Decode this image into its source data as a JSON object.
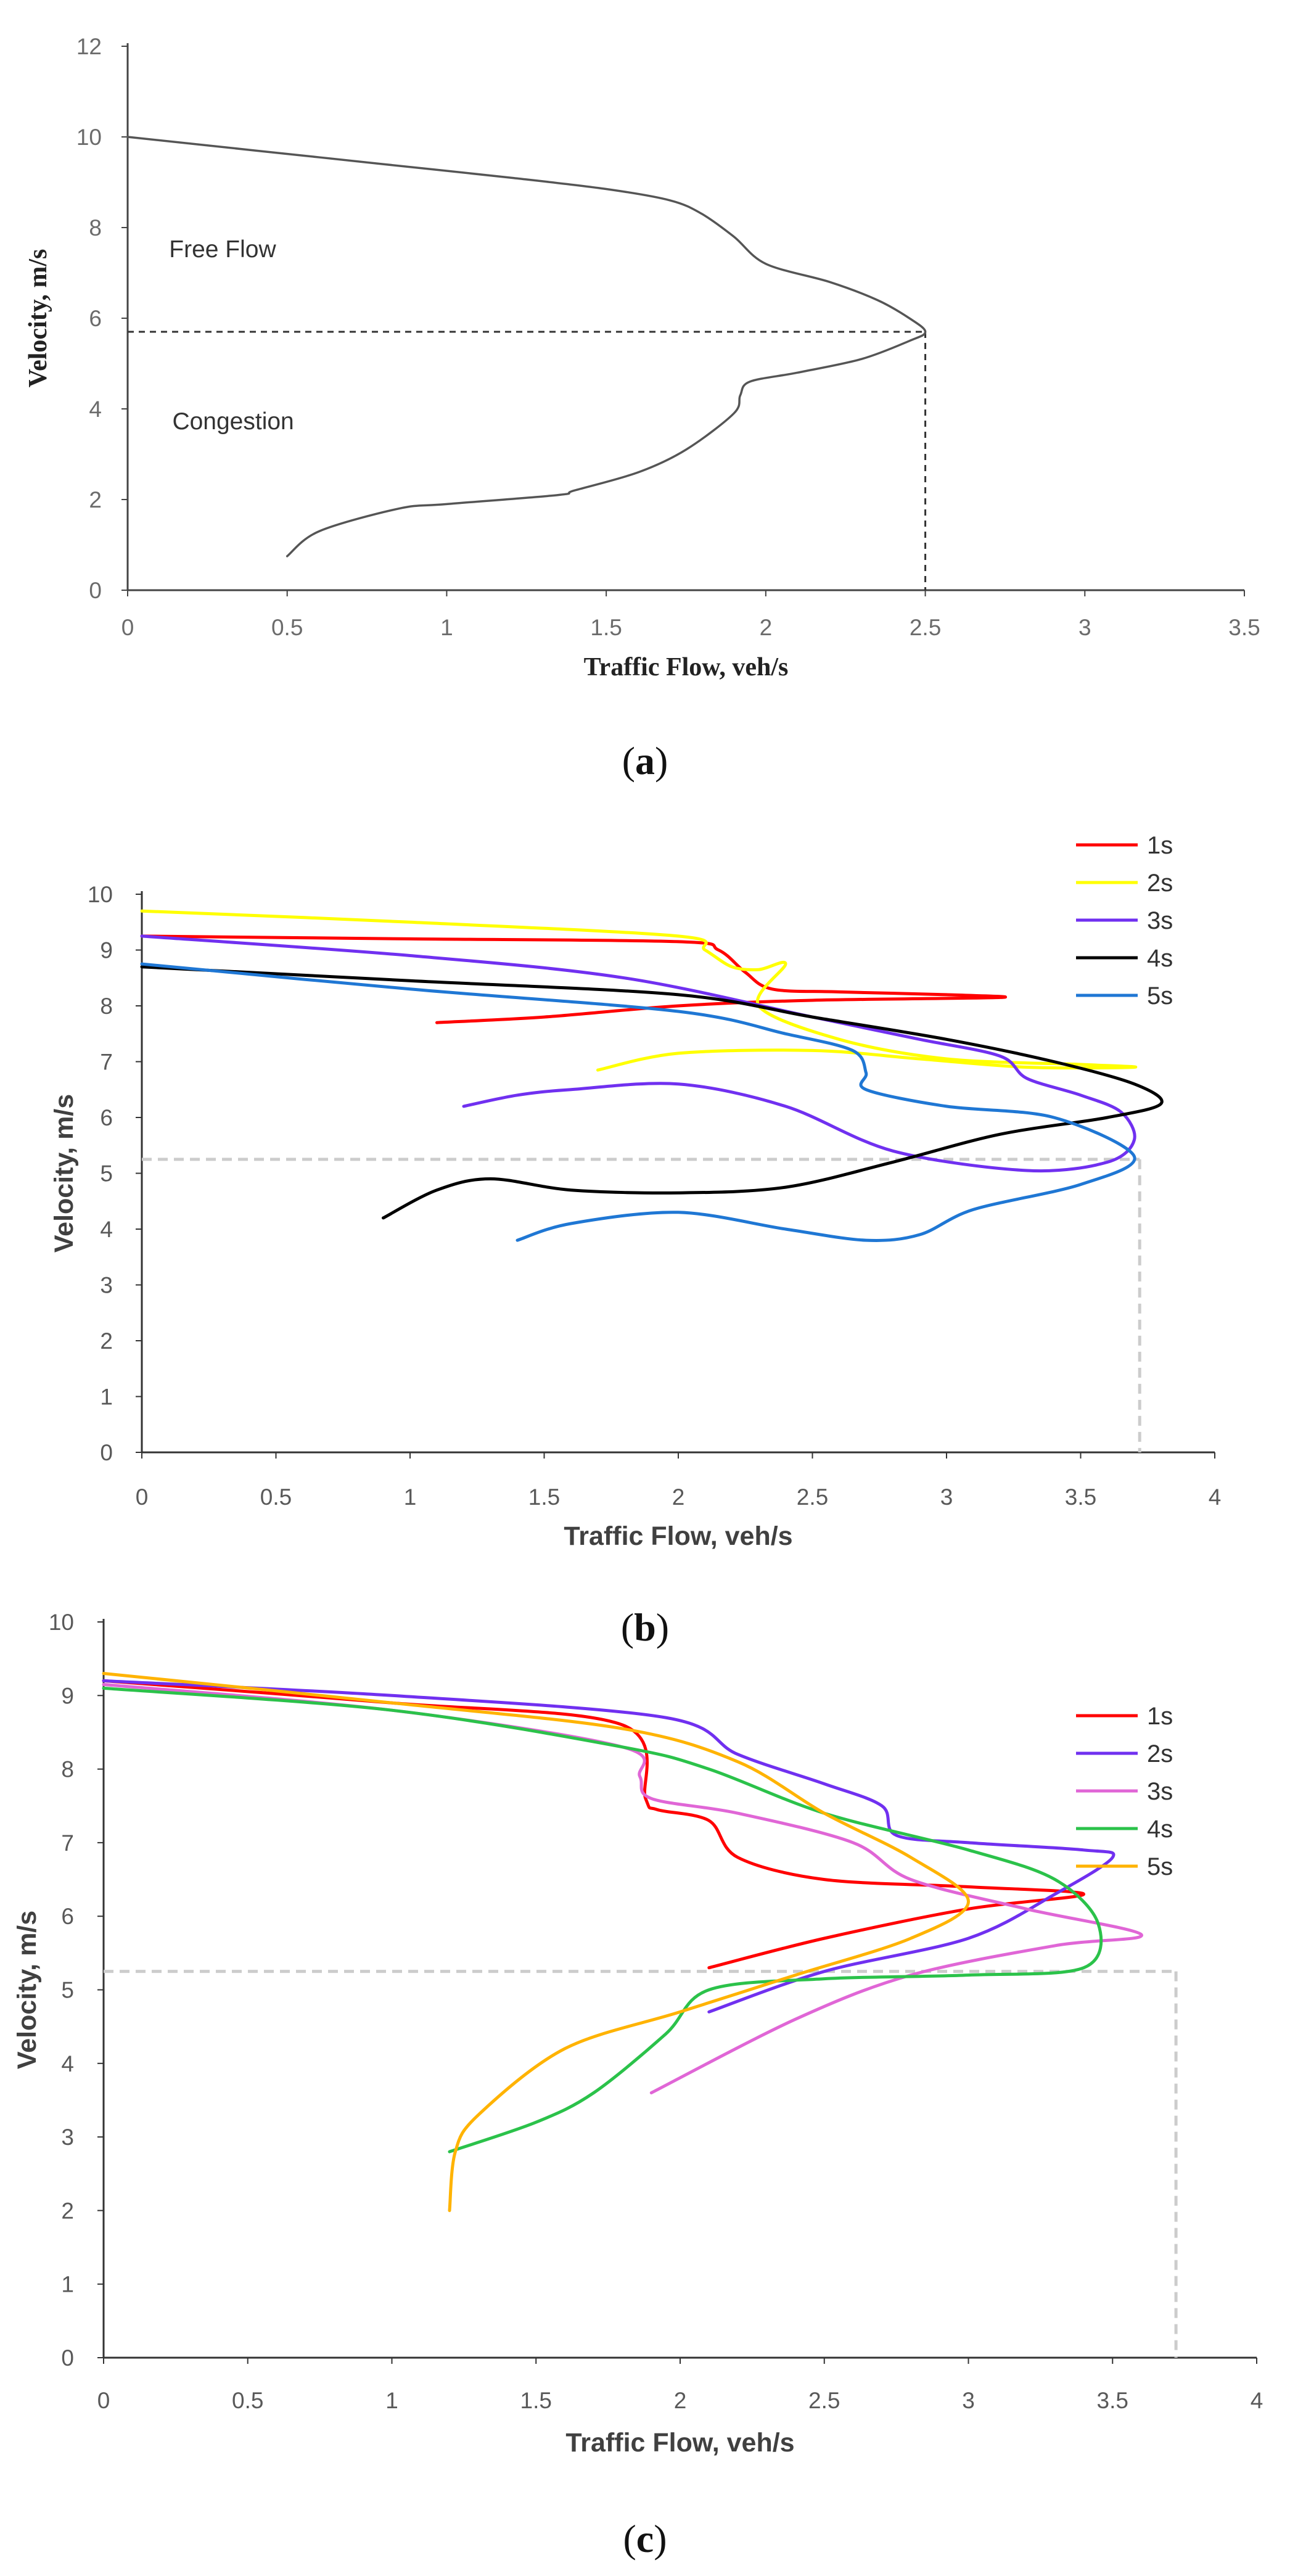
{
  "chart_data": [
    {
      "type": "line",
      "panel": "a",
      "caption": {
        "open": "(",
        "letter": "a",
        "close": ")"
      },
      "xlabel": "Traffic Flow, veh/s",
      "ylabel": "Velocity, m/s",
      "xlim": [
        0,
        3.5
      ],
      "ylim": [
        0,
        12
      ],
      "xticks": [
        "0",
        "0.5",
        "1",
        "1.5",
        "2",
        "2.5",
        "3",
        "3.5"
      ],
      "xtick_values": [
        0,
        0.5,
        1,
        1.5,
        2,
        2.5,
        3,
        3.5
      ],
      "yticks": [
        "0",
        "2",
        "4",
        "6",
        "8",
        "10",
        "12"
      ],
      "ytick_values": [
        0,
        2,
        4,
        6,
        8,
        10,
        12
      ],
      "annotations": [
        {
          "text": "Free Flow",
          "x": 0.13,
          "y": 7.35
        },
        {
          "text": "Congestion",
          "x": 0.14,
          "y": 3.55
        }
      ],
      "reference": {
        "x": 2.5,
        "y": 5.7
      },
      "series": [
        {
          "name": "curve",
          "color": "#555555",
          "x": [
            0,
            0.4,
            0.8,
            1.2,
            1.5,
            1.7,
            1.8,
            1.9,
            2.0,
            2.2,
            2.35,
            2.45,
            2.5,
            2.45,
            2.3,
            2.1,
            1.95,
            1.92,
            1.9,
            1.75,
            1.6,
            1.4,
            1.35,
            1.0,
            0.85,
            0.6,
            0.5
          ],
          "y": [
            10,
            9.7,
            9.4,
            9.1,
            8.85,
            8.6,
            8.3,
            7.8,
            7.2,
            6.8,
            6.4,
            6.0,
            5.7,
            5.5,
            5.1,
            4.8,
            4.6,
            4.3,
            3.9,
            3.1,
            2.6,
            2.2,
            2.1,
            1.9,
            1.8,
            1.3,
            0.75
          ]
        }
      ]
    },
    {
      "type": "line",
      "panel": "b",
      "caption": {
        "open": "(",
        "letter": "b",
        "close": ")"
      },
      "xlabel": "Traffic Flow, veh/s",
      "ylabel": "Velocity, m/s",
      "xlim": [
        0,
        4
      ],
      "ylim": [
        0,
        10
      ],
      "xticks": [
        "0",
        "0.5",
        "1",
        "1.5",
        "2",
        "2.5",
        "3",
        "3.5",
        "4"
      ],
      "xtick_values": [
        0,
        0.5,
        1,
        1.5,
        2,
        2.5,
        3,
        3.5,
        4
      ],
      "yticks": [
        "0",
        "1",
        "2",
        "3",
        "4",
        "5",
        "6",
        "7",
        "8",
        "9",
        "10"
      ],
      "ytick_values": [
        0,
        1,
        2,
        3,
        4,
        5,
        6,
        7,
        8,
        9,
        10
      ],
      "reference": {
        "x": 3.72,
        "y": 5.25
      },
      "legend": [
        "1s",
        "2s",
        "3s",
        "4s",
        "5s"
      ],
      "series": [
        {
          "name": "1s",
          "color": "#ff0000",
          "x": [
            0,
            1.0,
            2.0,
            2.15,
            2.25,
            2.35,
            2.6,
            3.0,
            3.2,
            2.5,
            2.0,
            1.5,
            1.1
          ],
          "y": [
            9.25,
            9.2,
            9.15,
            9.0,
            8.6,
            8.3,
            8.25,
            8.2,
            8.15,
            8.1,
            8.0,
            7.8,
            7.7
          ]
        },
        {
          "name": "2s",
          "color": "#ffff00",
          "x": [
            0,
            1.0,
            2.0,
            2.1,
            2.2,
            2.3,
            2.4,
            2.3,
            2.6,
            3.0,
            3.5,
            3.7,
            3.3,
            2.9,
            2.5,
            2.0,
            1.7
          ],
          "y": [
            9.7,
            9.5,
            9.25,
            9.0,
            8.7,
            8.65,
            8.75,
            8.0,
            7.4,
            7.05,
            6.95,
            6.9,
            6.9,
            7.05,
            7.2,
            7.15,
            6.85
          ]
        },
        {
          "name": "3s",
          "color": "#7030f0",
          "x": [
            0,
            1.0,
            1.8,
            2.5,
            2.9,
            3.2,
            3.3,
            3.5,
            3.65,
            3.7,
            3.6,
            3.3,
            2.8,
            2.4,
            2.0,
            1.6,
            1.4,
            1.2
          ],
          "y": [
            9.25,
            8.9,
            8.5,
            7.8,
            7.4,
            7.1,
            6.7,
            6.4,
            6.1,
            5.6,
            5.2,
            5.05,
            5.4,
            6.2,
            6.6,
            6.5,
            6.4,
            6.2
          ]
        },
        {
          "name": "4s",
          "color": "#000000",
          "x": [
            0,
            1.0,
            2.0,
            2.5,
            3.0,
            3.4,
            3.7,
            3.8,
            3.6,
            3.2,
            2.8,
            2.4,
            2.0,
            1.6,
            1.3,
            1.1,
            0.9
          ],
          "y": [
            8.7,
            8.45,
            8.2,
            7.8,
            7.4,
            7.0,
            6.6,
            6.25,
            6.0,
            5.7,
            5.2,
            4.75,
            4.65,
            4.7,
            4.9,
            4.7,
            4.2
          ]
        },
        {
          "name": "5s",
          "color": "#1f77d4",
          "x": [
            0,
            1.0,
            2.0,
            2.4,
            2.65,
            2.7,
            2.7,
            3.0,
            3.4,
            3.7,
            3.5,
            3.1,
            2.9,
            2.7,
            2.4,
            2.0,
            1.6,
            1.4
          ],
          "y": [
            8.75,
            8.3,
            7.9,
            7.5,
            7.2,
            6.8,
            6.5,
            6.2,
            6.0,
            5.3,
            4.8,
            4.35,
            3.9,
            3.8,
            4.0,
            4.3,
            4.1,
            3.8
          ]
        }
      ]
    },
    {
      "type": "line",
      "panel": "c",
      "caption": {
        "open": "(",
        "letter": "c",
        "close": ")"
      },
      "xlabel": "Traffic Flow, veh/s",
      "ylabel": "Velocity, m/s",
      "xlim": [
        0,
        4
      ],
      "ylim": [
        0,
        10
      ],
      "xticks": [
        "0",
        "0.5",
        "1",
        "1.5",
        "2",
        "2.5",
        "3",
        "3.5",
        "4"
      ],
      "xtick_values": [
        0,
        0.5,
        1,
        1.5,
        2,
        2.5,
        3,
        3.5,
        4
      ],
      "yticks": [
        "0",
        "1",
        "2",
        "3",
        "4",
        "5",
        "6",
        "7",
        "8",
        "9",
        "10"
      ],
      "ytick_values": [
        0,
        1,
        2,
        3,
        4,
        5,
        6,
        7,
        8,
        9,
        10
      ],
      "reference": {
        "x": 3.72,
        "y": 5.25
      },
      "legend": [
        "1s",
        "2s",
        "3s",
        "4s",
        "5s"
      ],
      "series": [
        {
          "name": "1s",
          "color": "#ff0000",
          "x": [
            0,
            1.0,
            1.8,
            1.88,
            1.92,
            2.1,
            2.2,
            2.5,
            3.0,
            3.4,
            3.0,
            2.5,
            2.1
          ],
          "y": [
            9.2,
            8.9,
            8.6,
            7.6,
            7.45,
            7.3,
            6.8,
            6.5,
            6.4,
            6.3,
            6.1,
            5.7,
            5.3
          ]
        },
        {
          "name": "2s",
          "color": "#7030f0",
          "x": [
            0,
            1.0,
            1.95,
            2.2,
            2.5,
            2.7,
            2.75,
            3.0,
            3.4,
            3.5,
            3.3,
            3.0,
            2.5,
            2.1
          ],
          "y": [
            9.2,
            9.0,
            8.7,
            8.2,
            7.8,
            7.5,
            7.1,
            7.0,
            6.9,
            6.8,
            6.3,
            5.7,
            5.25,
            4.7
          ]
        },
        {
          "name": "3s",
          "color": "#e066d6",
          "x": [
            0,
            1.0,
            1.8,
            1.86,
            1.9,
            2.2,
            2.6,
            2.8,
            3.2,
            3.6,
            3.3,
            2.8,
            2.4,
            1.9
          ],
          "y": [
            9.15,
            8.8,
            8.3,
            7.9,
            7.6,
            7.4,
            7.0,
            6.5,
            6.1,
            5.75,
            5.6,
            5.2,
            4.6,
            3.6
          ]
        },
        {
          "name": "4s",
          "color": "#2bc24a",
          "x": [
            0,
            1.0,
            1.8,
            2.1,
            2.5,
            3.0,
            3.3,
            3.45,
            3.4,
            3.0,
            2.5,
            2.1,
            1.95,
            1.7,
            1.5,
            1.2
          ],
          "y": [
            9.1,
            8.8,
            8.3,
            8.0,
            7.4,
            6.9,
            6.5,
            5.9,
            5.3,
            5.2,
            5.15,
            5.0,
            4.4,
            3.6,
            3.2,
            2.8
          ]
        },
        {
          "name": "5s",
          "color": "#ffb300",
          "x": [
            0,
            1.0,
            1.8,
            2.2,
            2.5,
            2.8,
            3.0,
            2.8,
            2.4,
            2.0,
            1.6,
            1.3,
            1.22,
            1.2
          ],
          "y": [
            9.3,
            8.9,
            8.55,
            8.1,
            7.4,
            6.8,
            6.2,
            5.7,
            5.2,
            4.7,
            4.2,
            3.3,
            2.8,
            2.0
          ]
        }
      ]
    }
  ]
}
